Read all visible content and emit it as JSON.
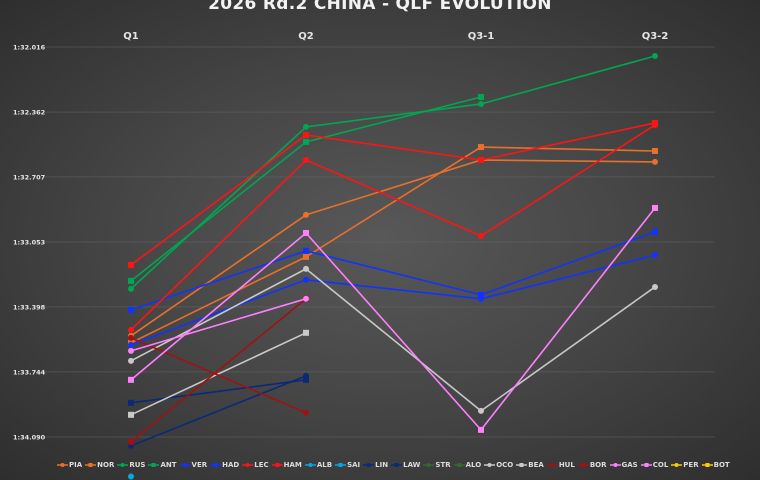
{
  "chart_data": {
    "type": "line",
    "title": "2026 Rd.2 CHINA - QLF EVOLUTION",
    "categories": [
      "Q1",
      "Q2",
      "Q3-1",
      "Q3-2"
    ],
    "ylabel": "",
    "xlabel": "",
    "y_inverted": true,
    "ylim_seconds": [
      92.016,
      94.09
    ],
    "y_ticks": [
      {
        "value": 92.016,
        "label": "1:32.016"
      },
      {
        "value": 92.362,
        "label": "1:32.362"
      },
      {
        "value": 92.707,
        "label": "1:32.707"
      },
      {
        "value": 93.053,
        "label": "1:33.053"
      },
      {
        "value": 93.398,
        "label": "1:33.398"
      },
      {
        "value": 93.744,
        "label": "1:33.744"
      },
      {
        "value": 94.09,
        "label": "1:34.090"
      }
    ],
    "grid": true,
    "legend_position": "bottom",
    "series": [
      {
        "name": "PIA",
        "color": "#e8702a",
        "marker": "circle",
        "values": [
          93.552,
          92.909,
          92.617,
          92.627
        ]
      },
      {
        "name": "NOR",
        "color": "#e8702a",
        "marker": "square",
        "values": [
          93.589,
          93.132,
          92.548,
          92.569
        ]
      },
      {
        "name": "RUS",
        "color": "#00a651",
        "marker": "circle",
        "values": [
          93.302,
          92.441,
          92.319,
          92.064
        ]
      },
      {
        "name": "ANT",
        "color": "#00a651",
        "marker": "square",
        "values": [
          93.26,
          92.521,
          92.282,
          null
        ]
      },
      {
        "name": "VER",
        "color": "#1133ff",
        "marker": "circle",
        "values": [
          93.6,
          93.254,
          93.355,
          93.122
        ]
      },
      {
        "name": "HAD",
        "color": "#1133ff",
        "marker": "square",
        "values": [
          93.414,
          93.1,
          93.334,
          92.999
        ]
      },
      {
        "name": "LEC",
        "color": "#ff1414",
        "marker": "circle",
        "values": [
          93.52,
          92.617,
          93.021,
          92.431
        ]
      },
      {
        "name": "HAM",
        "color": "#ff1414",
        "marker": "square",
        "values": [
          93.175,
          92.484,
          92.617,
          92.42
        ]
      },
      {
        "name": "ALB",
        "color": "#00a8e6",
        "marker": "circle",
        "values": [
          94.3,
          null,
          null,
          null
        ]
      },
      {
        "name": "SAI",
        "color": "#00a8e6",
        "marker": "square",
        "values": [
          null,
          null,
          null,
          null
        ]
      },
      {
        "name": "LIN",
        "color": "#0a2a78",
        "marker": "circle",
        "values": [
          94.137,
          93.765,
          null,
          null
        ]
      },
      {
        "name": "LAW",
        "color": "#0a2a78",
        "marker": "square",
        "values": [
          93.908,
          93.786,
          null,
          null
        ]
      },
      {
        "name": "STR",
        "color": "#2f6b2f",
        "marker": "circle",
        "values": [
          null,
          null,
          null,
          null
        ]
      },
      {
        "name": "ALO",
        "color": "#2f6b2f",
        "marker": "square",
        "values": [
          null,
          null,
          null,
          null
        ]
      },
      {
        "name": "OCO",
        "color": "#c8c8c8",
        "marker": "circle",
        "values": [
          93.685,
          93.196,
          93.951,
          93.292
        ]
      },
      {
        "name": "BEA",
        "color": "#c8c8c8",
        "marker": "square",
        "values": [
          93.972,
          93.536,
          null,
          null
        ]
      },
      {
        "name": "HUL",
        "color": "#a01212",
        "marker": "circle",
        "values": [
          93.563,
          93.961,
          null,
          null
        ]
      },
      {
        "name": "BOR",
        "color": "#a01212",
        "marker": "square",
        "values": [
          94.115,
          93.355,
          null,
          null
        ]
      },
      {
        "name": "GAS",
        "color": "#ff80ff",
        "marker": "circle",
        "values": [
          93.632,
          93.355,
          null,
          null
        ]
      },
      {
        "name": "COL",
        "color": "#ff80ff",
        "marker": "square",
        "values": [
          93.786,
          93.005,
          94.052,
          92.872
        ]
      },
      {
        "name": "PER",
        "color": "#ffc800",
        "marker": "circle",
        "values": [
          null,
          null,
          null,
          null
        ]
      },
      {
        "name": "BOT",
        "color": "#ffc800",
        "marker": "square",
        "values": [
          null,
          null,
          null,
          null
        ]
      }
    ]
  }
}
